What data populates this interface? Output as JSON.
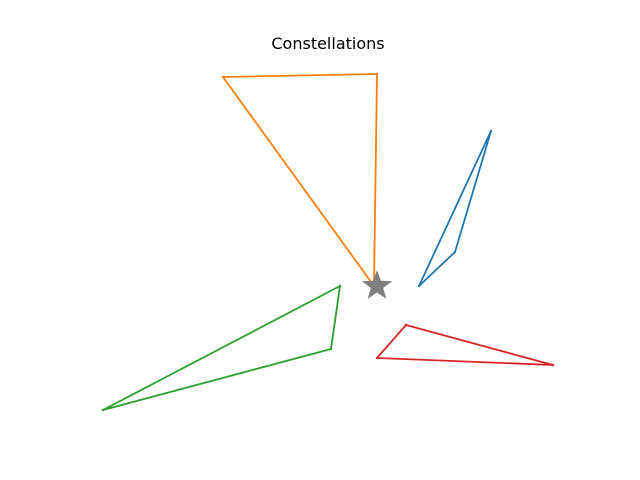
{
  "chart_data": {
    "type": "line",
    "title": "Constellations",
    "xlabel": "",
    "ylabel": "",
    "axes_visible": false,
    "grid": false,
    "legend": "none",
    "center_marker": {
      "shape": "star",
      "color": "#808080",
      "x": 0,
      "y": 0
    },
    "series": [
      {
        "color": "#1f77b4",
        "closed": true,
        "points": [
          [
            0.42,
            0.0
          ],
          [
            0.78,
            0.34
          ],
          [
            1.14,
            1.55
          ],
          [
            0.42,
            0.0
          ]
        ]
      },
      {
        "color": "#ff7f0e",
        "closed": true,
        "points": [
          [
            -0.03,
            0.0
          ],
          [
            0.0,
            2.12
          ],
          [
            -1.54,
            2.09
          ],
          [
            -0.03,
            0.0
          ]
        ]
      },
      {
        "color": "#2ca02c",
        "closed": true,
        "points": [
          [
            -0.37,
            0.0
          ],
          [
            -0.46,
            -0.63
          ],
          [
            -2.74,
            -1.24
          ],
          [
            -0.37,
            0.0
          ]
        ]
      },
      {
        "color": "#d62728",
        "closed": true,
        "points": [
          [
            0.29,
            -0.39
          ],
          [
            1.76,
            -0.79
          ],
          [
            0.0,
            -0.72
          ],
          [
            0.29,
            -0.39
          ]
        ]
      }
    ]
  }
}
